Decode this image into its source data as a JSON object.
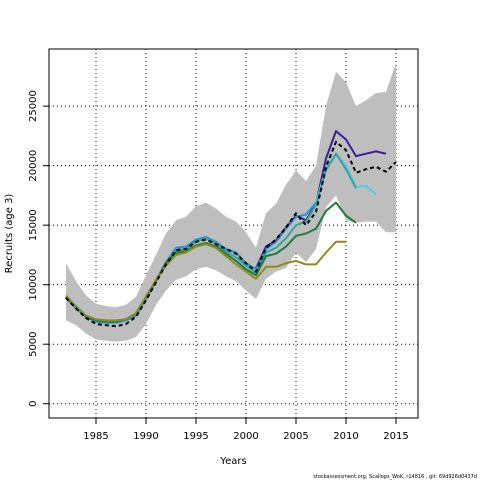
{
  "chart_data": {
    "type": "line",
    "title": "",
    "xlabel": "Years",
    "ylabel": "Recruits (age 3)",
    "xlim": [
      1980.3,
      2017.2
    ],
    "ylim": [
      -1200,
      29800
    ],
    "xticks": [
      1985,
      1990,
      1995,
      2000,
      2005,
      2010,
      2015
    ],
    "yticks": [
      0,
      5000,
      10000,
      15000,
      20000,
      25000
    ],
    "grid": true,
    "legend": "none",
    "band": {
      "color": "#bebebe",
      "x": [
        1982,
        1983,
        1984,
        1985,
        1986,
        1987,
        1988,
        1989,
        1990,
        1991,
        1992,
        1993,
        1994,
        1995,
        1996,
        1997,
        1998,
        1999,
        2000,
        2001,
        2002,
        2003,
        2004,
        2005,
        2006,
        2007,
        2008,
        2009,
        2010,
        2011,
        2012,
        2013,
        2014,
        2015
      ],
      "upper": [
        11800,
        10300,
        9100,
        8400,
        8200,
        8100,
        8300,
        9000,
        10800,
        12500,
        14300,
        15400,
        15700,
        16600,
        16900,
        16400,
        15700,
        15300,
        14400,
        13100,
        16000,
        16800,
        18400,
        19600,
        18700,
        20000,
        25000,
        27900,
        27000,
        25000,
        25500,
        26100,
        26200,
        28600
      ],
      "lower": [
        7000,
        6600,
        5900,
        5400,
        5300,
        5200,
        5300,
        5600,
        6700,
        8300,
        9500,
        10400,
        10700,
        11300,
        11500,
        11200,
        10700,
        10300,
        9500,
        8800,
        10500,
        11100,
        11400,
        12700,
        11900,
        13000,
        16500,
        17500,
        15400,
        15200,
        15300,
        15300,
        14400,
        14400
      ]
    },
    "series": [
      {
        "color": "#000000",
        "dash": "4,3",
        "width": 2,
        "x": [
          1982,
          1983,
          1984,
          1985,
          1986,
          1987,
          1988,
          1989,
          1990,
          1991,
          1992,
          1993,
          1994,
          1995,
          1996,
          1997,
          1998,
          1999,
          2000,
          2001,
          2002,
          2003,
          2004,
          2005,
          2006,
          2007,
          2008,
          2009,
          2010,
          2011,
          2012,
          2013,
          2014,
          2015
        ],
        "values": [
          8900,
          8000,
          7200,
          6700,
          6600,
          6500,
          6700,
          7300,
          8700,
          10200,
          11700,
          12900,
          13000,
          13600,
          13800,
          13400,
          13000,
          12600,
          11800,
          11100,
          13100,
          13800,
          14800,
          16000,
          15000,
          16100,
          19900,
          22000,
          21300,
          19400,
          19700,
          19900,
          19500,
          20300
        ]
      },
      {
        "color": "#3a1f96",
        "dash": "",
        "width": 2,
        "x": [
          2001,
          2002,
          2003,
          2004,
          2005,
          2006,
          2007,
          2008,
          2009,
          2010,
          2011,
          2012,
          2013,
          2014
        ],
        "values": [
          11400,
          13200,
          13700,
          14800,
          15800,
          15400,
          16800,
          20600,
          22900,
          22200,
          20800,
          21000,
          21200,
          21000
        ]
      },
      {
        "color": "#2a8fd6",
        "dash": "",
        "width": 2,
        "x": [
          1982,
          1983,
          1984,
          1985,
          1986,
          1987,
          1988,
          1989,
          1990,
          1991,
          1992,
          1993,
          1994,
          1995,
          1996,
          1997,
          1998,
          1999,
          2000,
          2001,
          2002,
          2003,
          2004,
          2005,
          2006,
          2007
        ],
        "values": [
          8900,
          8000,
          7300,
          6900,
          6800,
          6800,
          7000,
          7400,
          8800,
          10300,
          11900,
          13100,
          13200,
          13800,
          14000,
          13600,
          13000,
          12700,
          11800,
          11300,
          13000,
          13600,
          14700,
          15700,
          15900,
          16900
        ]
      },
      {
        "color": "#5ac8e0",
        "dash": "",
        "width": 2,
        "x": [
          2007,
          2008,
          2009,
          2010,
          2011,
          2012,
          2013
        ],
        "values": [
          16900,
          19800,
          21000,
          20000,
          18200,
          18300,
          17600
        ]
      },
      {
        "color": "#2ea89a",
        "dash": "",
        "width": 2,
        "x": [
          1982,
          1983,
          1984,
          1985,
          1986,
          1987,
          1988,
          1989,
          1990,
          1991,
          1992,
          1993,
          1994,
          1995,
          1996,
          1997,
          1998,
          1999,
          2000,
          2001,
          2002,
          2003,
          2004,
          2005,
          2006,
          2007,
          2008,
          2009,
          2010,
          2011
        ],
        "values": [
          9000,
          8200,
          7400,
          7000,
          6900,
          6900,
          7100,
          7600,
          9000,
          10400,
          11900,
          12900,
          13000,
          13600,
          13900,
          13400,
          12800,
          12300,
          11600,
          11000,
          12700,
          13100,
          13900,
          15000,
          15300,
          16700,
          19600,
          21000,
          19700,
          18100
        ]
      },
      {
        "color": "#1f7a3c",
        "dash": "",
        "width": 2,
        "x": [
          1982,
          1983,
          1984,
          1985,
          1986,
          1987,
          1988,
          1989,
          1990,
          1991,
          1992,
          1993,
          1994,
          1995,
          1996,
          1997,
          1998,
          1999,
          2000,
          2001,
          2002,
          2003,
          2004,
          2005,
          2006,
          2007,
          2008,
          2009,
          2010,
          2011
        ],
        "values": [
          9000,
          8100,
          7300,
          7000,
          6900,
          6900,
          7100,
          7600,
          9000,
          10300,
          11800,
          12700,
          12800,
          13300,
          13500,
          13200,
          12600,
          12000,
          11300,
          10800,
          12400,
          12600,
          13200,
          14100,
          14300,
          14700,
          16200,
          16900,
          15800,
          15200
        ]
      },
      {
        "color": "#8c8c1e",
        "dash": "",
        "width": 2,
        "x": [
          1982,
          1983,
          1984,
          1985,
          1986,
          1987,
          1988,
          1989,
          1990,
          1991,
          1992,
          1993,
          1994,
          1995,
          1996,
          1997,
          1998,
          1999,
          2000,
          2001,
          2002,
          2003,
          2004,
          2005,
          2006,
          2007,
          2008,
          2009,
          2010
        ],
        "values": [
          9100,
          8100,
          7400,
          7100,
          7000,
          7000,
          7100,
          7600,
          9000,
          10400,
          11600,
          12500,
          12700,
          13200,
          13400,
          13100,
          12400,
          11700,
          11100,
          10500,
          11500,
          11500,
          11800,
          12000,
          11700,
          11700,
          12700,
          13600,
          13600
        ]
      }
    ]
  },
  "footer": {
    "text": "stockassessment.org, Scallops_WoK, r14816 , git: 69d926d0437d"
  }
}
